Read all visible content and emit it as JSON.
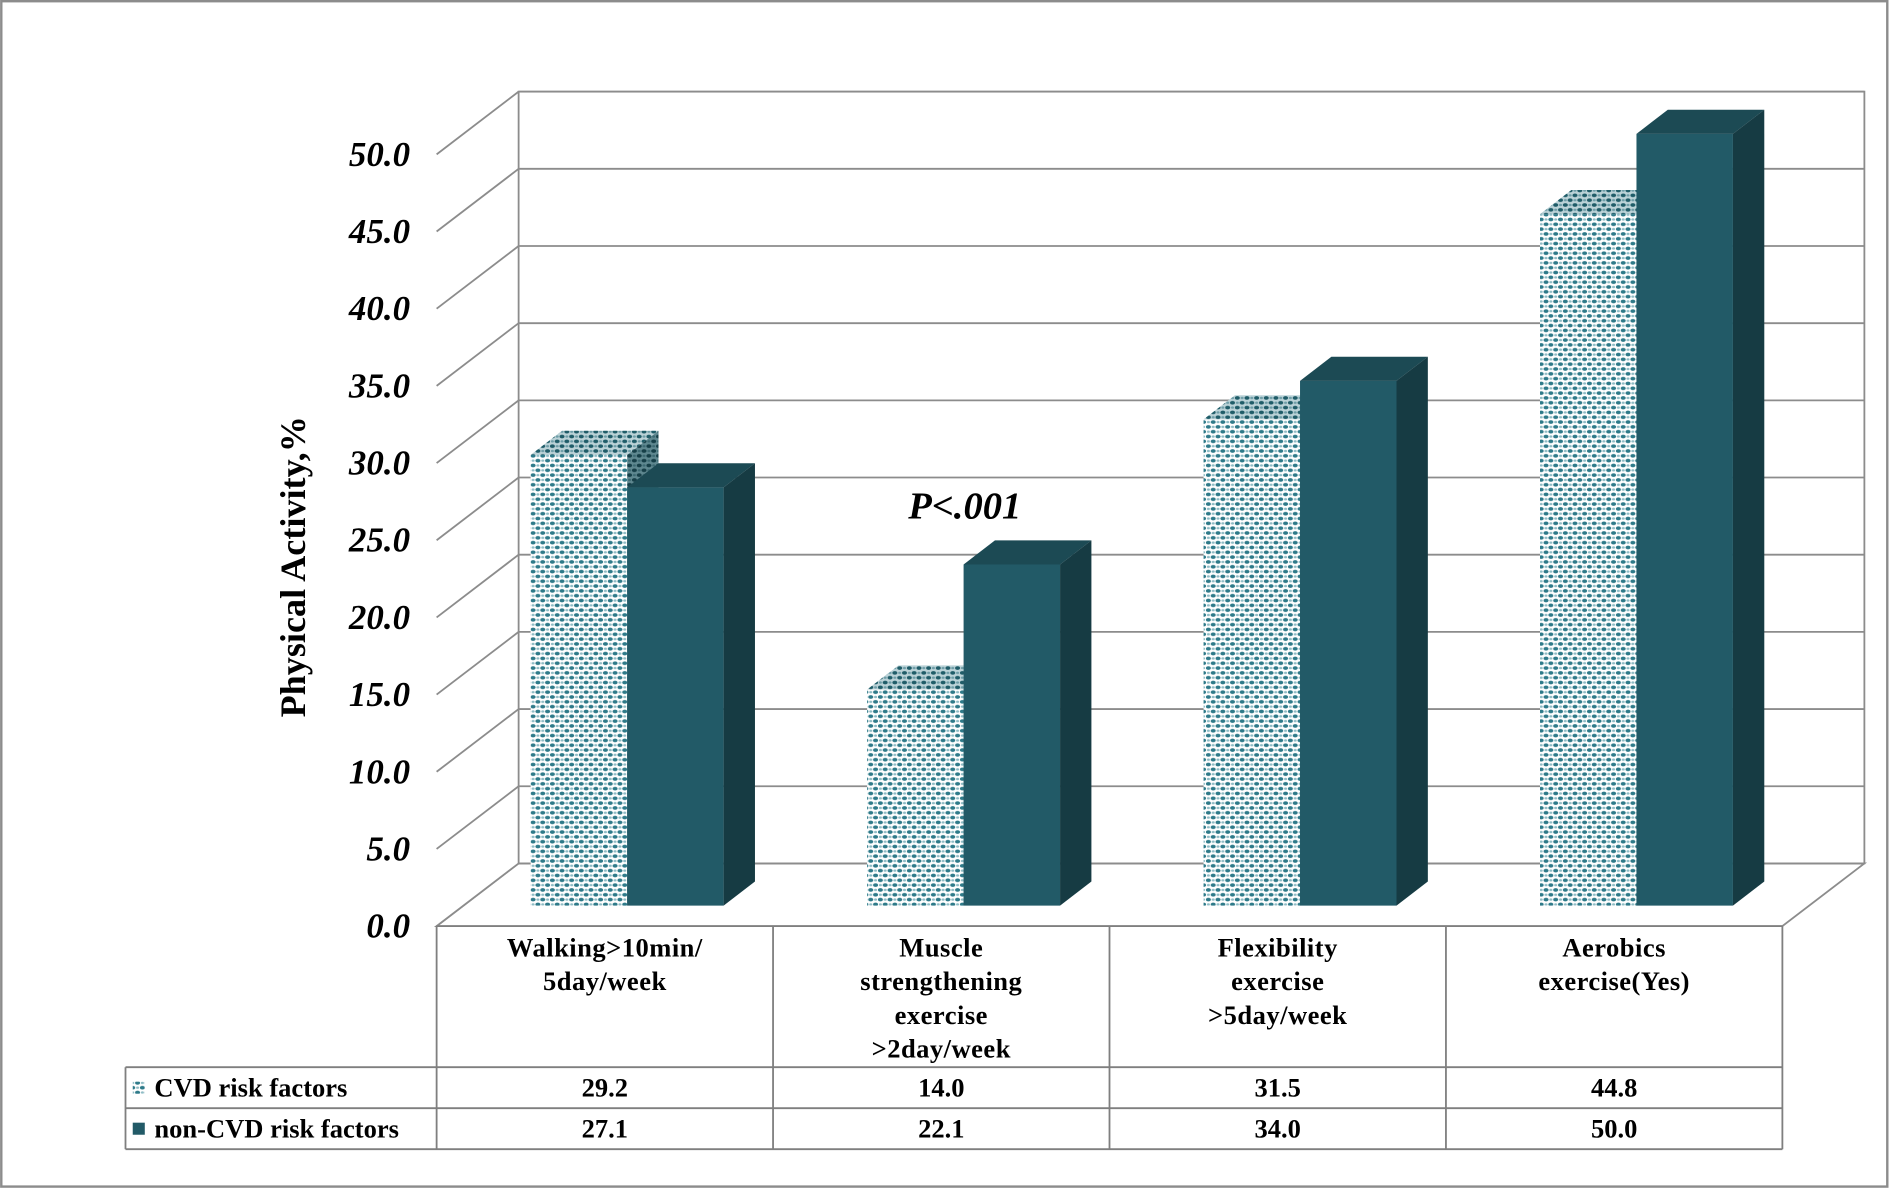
{
  "chart_data": {
    "type": "bar",
    "bar_style": "3d-clustered",
    "title": "",
    "xlabel": "",
    "ylabel": "Physical Activity,%",
    "ylim": [
      0,
      50
    ],
    "ytick_labels": [
      "0.0",
      "5.0",
      "10.0",
      "15.0",
      "20.0",
      "25.0",
      "30.0",
      "35.0",
      "40.0",
      "45.0",
      "50.0"
    ],
    "categories": [
      "Walking>10min/ 5day/week",
      "Muscle strengthening exercise >2day/week",
      "Flexibility exercise >5day/week",
      "Aerobics exercise(Yes)"
    ],
    "series": [
      {
        "name": "CVD risk factors",
        "values": [
          29.2,
          14.0,
          31.5,
          44.8
        ],
        "value_labels": [
          "29.2",
          "14.0",
          "31.5",
          "44.8"
        ],
        "color": "#2e7a89",
        "fill_style": "pattern"
      },
      {
        "name": "non-CVD risk factors",
        "values": [
          27.1,
          22.1,
          34.0,
          50.0
        ],
        "value_labels": [
          "27.1",
          "22.1",
          "34.0",
          "50.0"
        ],
        "color": "#225a67",
        "fill_style": "solid"
      }
    ],
    "annotations": [
      "P<.001"
    ],
    "legend": "bottom",
    "grid": true
  }
}
